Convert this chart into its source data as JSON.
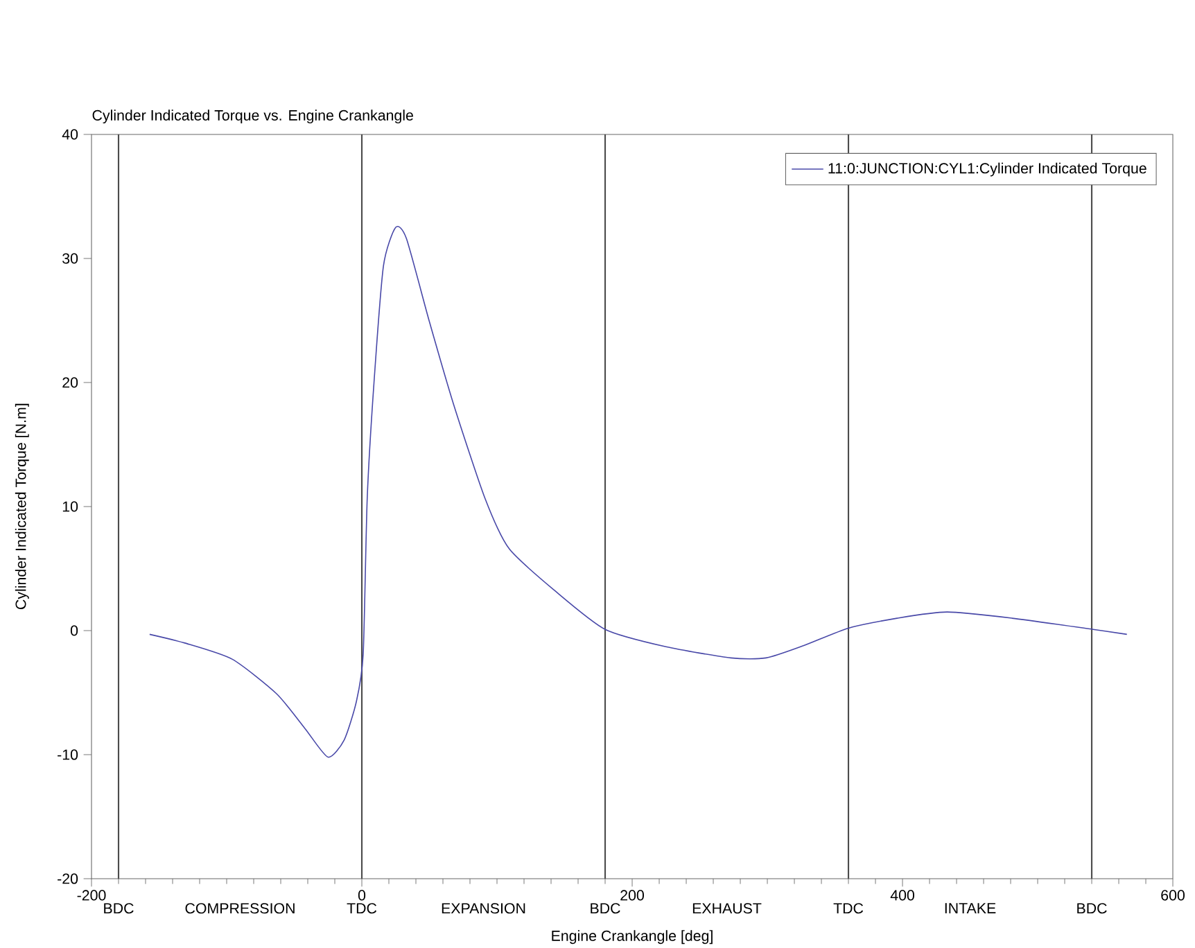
{
  "chart_data": {
    "type": "line",
    "title": "Cylinder Indicated Torque vs. Engine Crankangle",
    "xlabel": "Engine Crankangle  [deg]",
    "ylabel": "Cylinder Indicated Torque  [N.m]",
    "xlim": [
      -200,
      600
    ],
    "xticks": [
      -200,
      0,
      200,
      400,
      600
    ],
    "ylim": [
      -20,
      40
    ],
    "yticks": [
      -20,
      -10,
      0,
      10,
      20,
      30,
      40
    ],
    "legend": "top right",
    "marker": "none",
    "line_style": "solid",
    "series": [
      {
        "name": "11:0:JUNCTION:CYL1:Cylinder Indicated Torque",
        "color": "#4848a8",
        "x": [
          -157,
          -131,
          -96,
          -63,
          -42,
          -25,
          -13,
          -4,
          1,
          4,
          9,
          16,
          25,
          33,
          50,
          68,
          91,
          109,
          143,
          180,
          225,
          273,
          299,
          327,
          360,
          396,
          433,
          481,
          541,
          566
        ],
        "values": [
          -0.3,
          -1.0,
          -2.3,
          -5.1,
          -7.9,
          -10.2,
          -8.8,
          -5.7,
          -1.9,
          10.7,
          20,
          29.4,
          32.5,
          31.6,
          24.9,
          18.2,
          10.7,
          6.6,
          3.2,
          0.1,
          -1.3,
          -2.2,
          -2.2,
          -1.2,
          0.2,
          1.0,
          1.5,
          1.0,
          0.1,
          -0.3
        ]
      }
    ],
    "ref_lines": [
      {
        "axis": "x",
        "value": -180,
        "label": "BDC"
      },
      {
        "axis": "x",
        "value": 0,
        "label": "TDC"
      },
      {
        "axis": "x",
        "value": 180,
        "label": "BDC"
      },
      {
        "axis": "x",
        "value": 360,
        "label": "TDC"
      },
      {
        "axis": "x",
        "value": 540,
        "label": "BDC"
      }
    ],
    "annotations": [
      "COMPRESSION",
      "EXPANSION",
      "EXHAUST",
      "INTAKE"
    ]
  }
}
